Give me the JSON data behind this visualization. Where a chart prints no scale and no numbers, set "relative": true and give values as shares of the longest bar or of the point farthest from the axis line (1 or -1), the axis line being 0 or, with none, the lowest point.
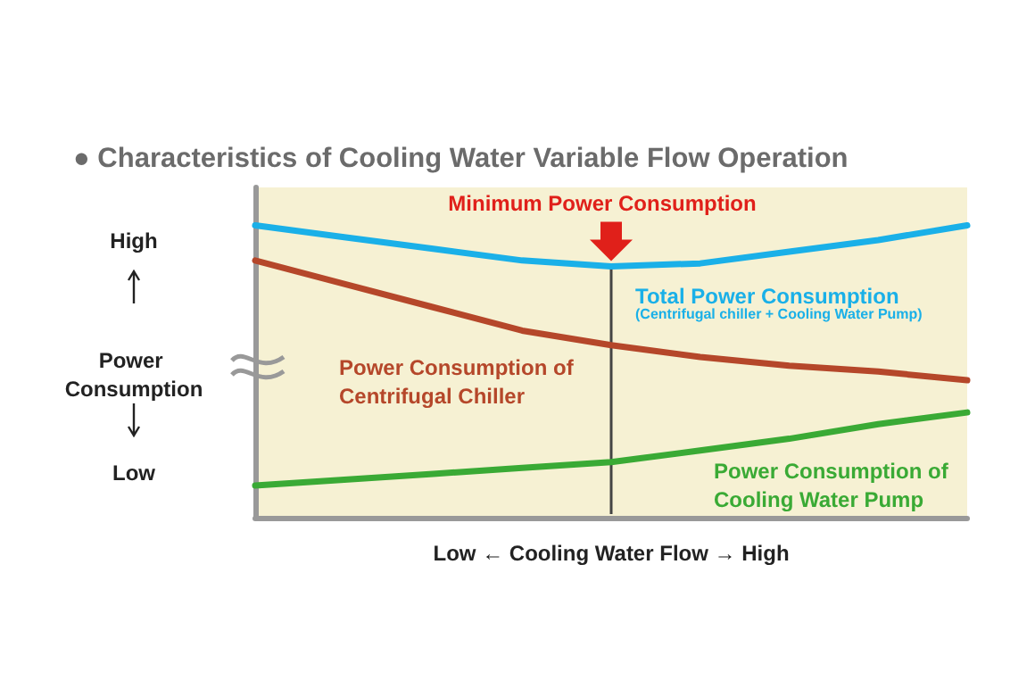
{
  "chart_data": {
    "type": "line",
    "title": "● Characteristics of Cooling Water Variable Flow Operation",
    "xlabel": "Low ← Cooling Water Flow → High",
    "ylabel": "Power Consumption",
    "relative": true,
    "grid": false,
    "legend": false,
    "marker": "none",
    "line_style": "solid",
    "categories": [
      null,
      null,
      null,
      null,
      null,
      null,
      null,
      null,
      null
    ],
    "series": [
      {
        "name": "Total Power Consumption",
        "color": "#1ab0e8",
        "values": [
          1,
          0.96,
          0.92,
          0.88,
          0.86,
          0.87,
          0.91,
          0.95,
          1
        ]
      },
      {
        "name": "Power Consumption of Centrifugal Chiller",
        "color": "#b5472a",
        "values": [
          0.88,
          0.8,
          0.72,
          0.64,
          0.59,
          0.55,
          0.52,
          0.5,
          0.47
        ]
      },
      {
        "name": "Power Consumption of Cooling Water Pump",
        "color": "#3aaa35",
        "values": [
          0.11,
          0.13,
          0.15,
          0.17,
          0.19,
          0.23,
          0.27,
          0.32,
          0.36
        ]
      }
    ],
    "annotations": [
      "High",
      "Low",
      "(Centrifugal chiller + Cooling Water Pump)",
      {
        "text": "Minimum Power Consumption",
        "y": 0.86
      }
    ]
  }
}
